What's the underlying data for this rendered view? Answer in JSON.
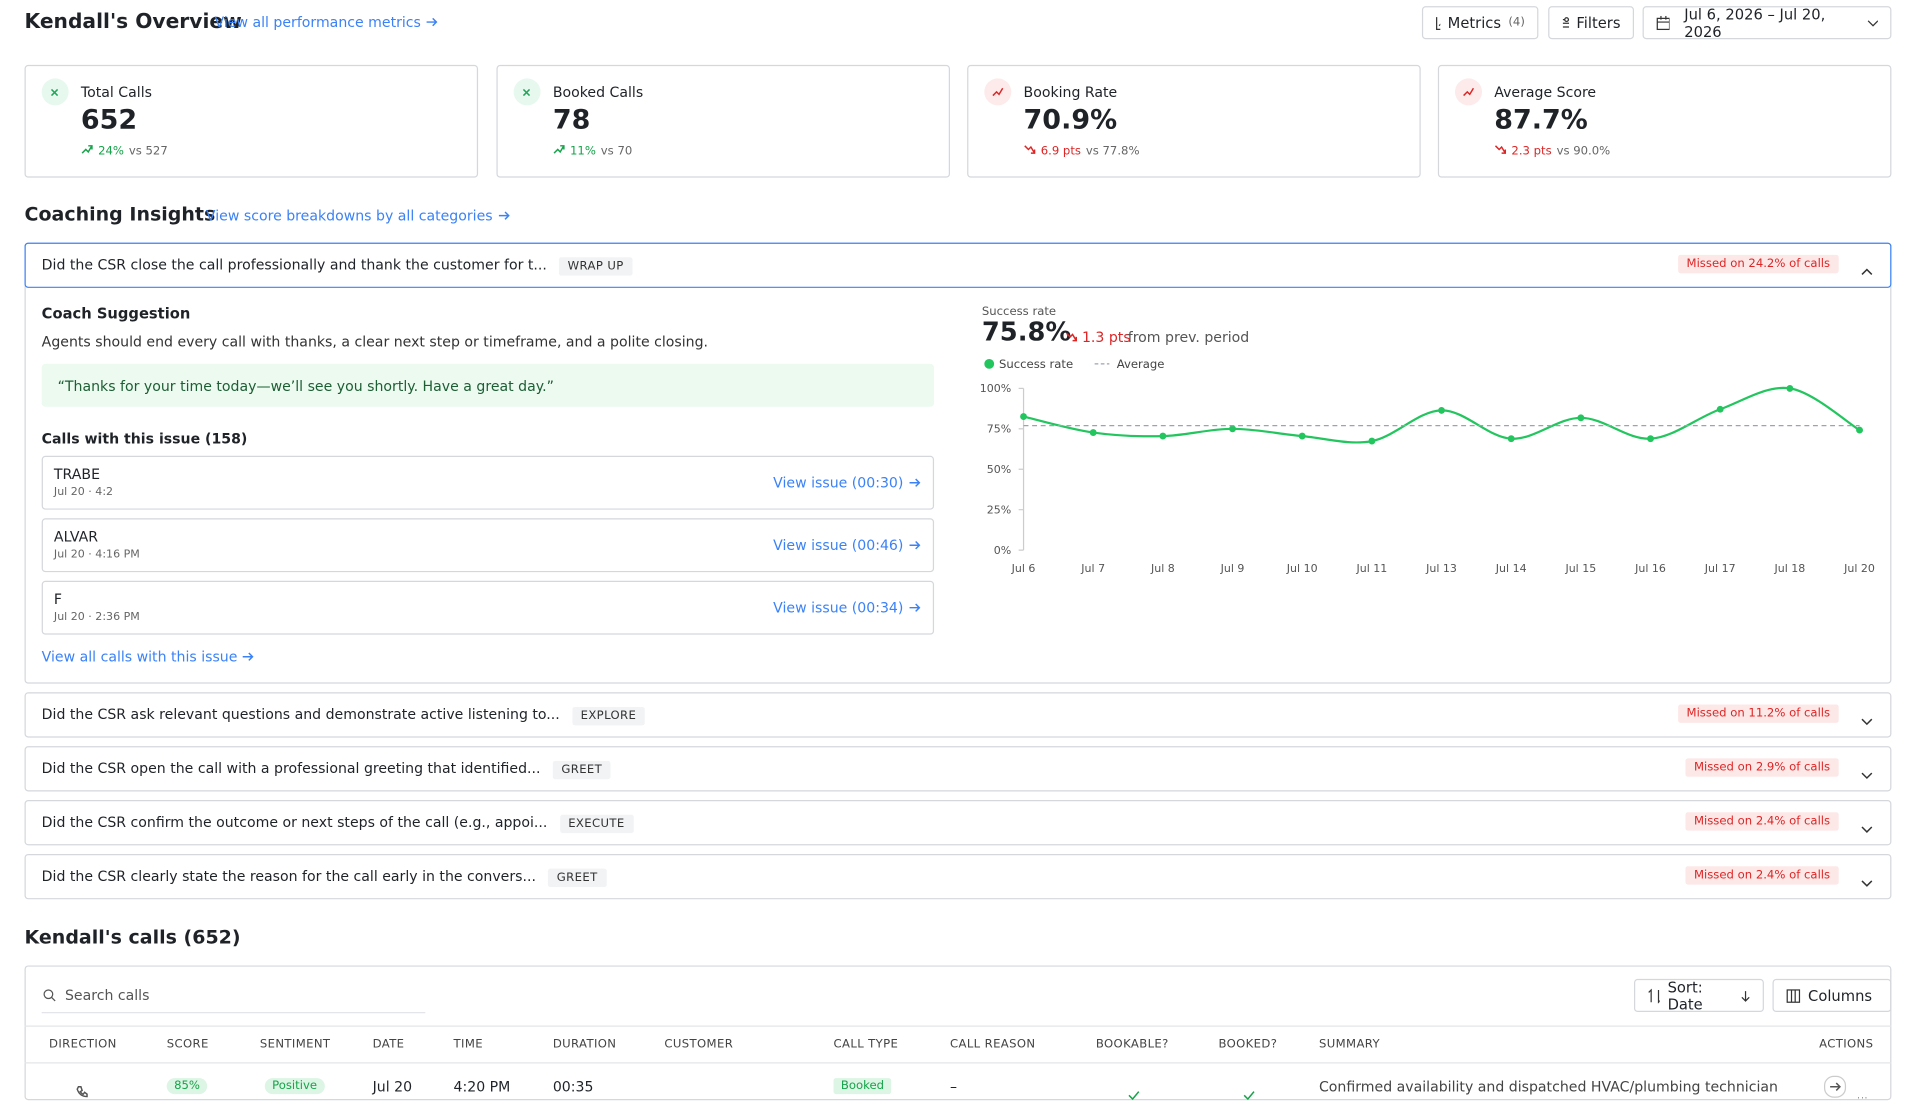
{
  "header": {
    "title": "Kendall's Overview",
    "link": "View all performance metrics",
    "buttons": {
      "metrics": "Metrics",
      "metrics_count": "(4)",
      "filters": "Filters",
      "date_range": "Jul 6, 2026 – Jul 20, 2026"
    }
  },
  "kpis": [
    {
      "label": "Total Calls",
      "value": "652",
      "change": "24%",
      "compare": "vs 527",
      "trend": "up"
    },
    {
      "label": "Booked Calls",
      "value": "78",
      "change": "11%",
      "compare": "vs 70",
      "trend": "up"
    },
    {
      "label": "Booking Rate",
      "value": "70.9%",
      "change": "6.9 pts",
      "compare": "vs 77.8%",
      "trend": "down"
    },
    {
      "label": "Average Score",
      "value": "87.7%",
      "change": "2.3 pts",
      "compare": "vs 90.0%",
      "trend": "down"
    }
  ],
  "insights": {
    "title": "Coaching Insights",
    "link": "View score breakdowns by all categories",
    "items": [
      {
        "question": "Did the CSR close the call professionally and thank the customer for t...",
        "tag": "WRAP UP",
        "missed": "Missed on 24.2% of calls"
      },
      {
        "question": "Did the CSR ask relevant questions and demonstrate active listening to...",
        "tag": "EXPLORE",
        "missed": "Missed on 11.2% of calls"
      },
      {
        "question": "Did the CSR open the call with a professional greeting that identified...",
        "tag": "GREET",
        "missed": "Missed on 2.9% of calls"
      },
      {
        "question": "Did the CSR confirm the outcome or next steps of the call (e.g., appoi...",
        "tag": "EXECUTE",
        "missed": "Missed on 2.4% of calls"
      },
      {
        "question": "Did the CSR clearly state the reason for the call early in the convers...",
        "tag": "GREET",
        "missed": "Missed on 2.4% of calls"
      }
    ],
    "coach": {
      "title": "Coach Suggestion",
      "text": "Agents should end every call with thanks, a clear next step or timeframe, and a polite closing.",
      "quote": "“Thanks for your time today—we’ll see you shortly. Have a great day.”",
      "calls_title": "Calls with this issue (158)",
      "calls": [
        {
          "name": "TRABE",
          "meta": "Jul 20 · 4:2",
          "action": "View issue (00:30)"
        },
        {
          "name": "ALVAR",
          "meta": "Jul 20 · 4:16 PM",
          "action": "View issue (00:46)"
        },
        {
          "name": "F",
          "meta": "Jul 20 · 2:36 PM",
          "action": "View issue (00:34)"
        }
      ],
      "all_link": "View all calls with this issue"
    }
  },
  "chart_data": {
    "type": "line",
    "title": "Success rate",
    "value": "75.8%",
    "change": "1.3 pts",
    "change_note": "from prev. period",
    "categories": [
      "Jul 6",
      "Jul 7",
      "Jul 8",
      "Jul 9",
      "Jul 10",
      "Jul 11",
      "Jul 13",
      "Jul 14",
      "Jul 15",
      "Jul 16",
      "Jul 17",
      "Jul 18",
      "Jul 20"
    ],
    "series": [
      {
        "name": "Success rate",
        "color": "#22c55e",
        "values": [
          82.6,
          72.7,
          70.5,
          75,
          70.5,
          67.4,
          86.4,
          68.9,
          81.8,
          68.9,
          87.1,
          100,
          74.2
        ]
      },
      {
        "name": "Average",
        "color": "#9ca3af",
        "dashed": true,
        "values": [
          77,
          77,
          77,
          77,
          77,
          77,
          77,
          77,
          77,
          77,
          77,
          77,
          77
        ]
      }
    ],
    "ylim": [
      0,
      100
    ],
    "yticks": [
      {
        "value": 0,
        "label": "0%"
      },
      {
        "value": 25,
        "label": "25%"
      },
      {
        "value": 50,
        "label": "50%"
      },
      {
        "value": 75,
        "label": "75%"
      },
      {
        "value": 100,
        "label": "100%"
      }
    ]
  },
  "calls": {
    "title": "Kendall's calls (652)",
    "search": "Search calls",
    "sort": "Sort: Date",
    "columns_btn": "Columns",
    "columns": [
      "DIRECTION",
      "SCORE",
      "SENTIMENT",
      "DATE",
      "TIME",
      "DURATION",
      "CUSTOMER",
      "CALL TYPE",
      "CALL REASON",
      "BOOKABLE?",
      "BOOKED?",
      "SUMMARY",
      "ACTIONS"
    ],
    "rows": [
      {
        "score": "85%",
        "sentiment": "Positive",
        "date": "Jul 20",
        "time": "4:20 PM",
        "duration": "00:35",
        "call_type": "Booked",
        "call_reason": "–",
        "summary": "Confirmed availability and dispatched HVAC/plumbing technician"
      }
    ]
  }
}
